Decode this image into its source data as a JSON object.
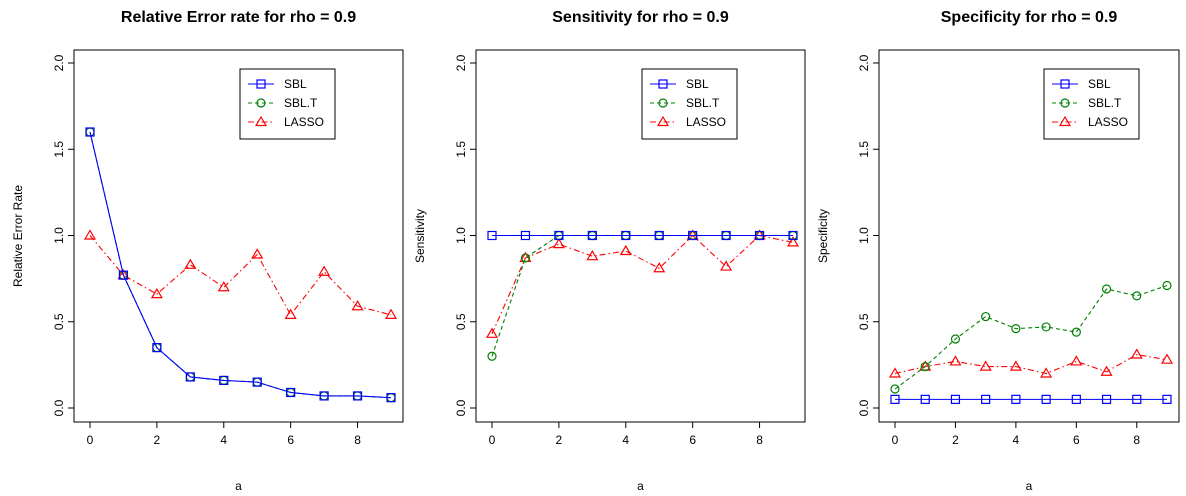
{
  "chart_data": [
    {
      "type": "line",
      "title": "Relative Error rate for rho = 0.9",
      "xlabel": "a",
      "ylabel": "Relative Error Rate",
      "xlim": [
        0,
        9
      ],
      "ylim": [
        0,
        2.0
      ],
      "xticks": [
        "0",
        "2",
        "4",
        "6",
        "8"
      ],
      "yticks": [
        "0.0",
        "0.5",
        "1.0",
        "1.5",
        "2.0"
      ],
      "legend_position": "top-right",
      "grid": false,
      "x": [
        0,
        1,
        2,
        3,
        4,
        5,
        6,
        7,
        8,
        9
      ],
      "series": [
        {
          "name": "SBL",
          "color": "#0000ff",
          "marker": "square",
          "line": "solid",
          "values": [
            1.6,
            0.77,
            0.35,
            0.18,
            0.16,
            0.15,
            0.09,
            0.07,
            0.07,
            0.06
          ]
        },
        {
          "name": "SBL.T",
          "color": "#008000",
          "marker": "circle",
          "line": "dashed",
          "values": [
            1.6,
            0.77,
            0.35,
            0.18,
            0.16,
            0.15,
            0.09,
            0.07,
            0.07,
            0.06
          ]
        },
        {
          "name": "LASSO",
          "color": "#ff0000",
          "marker": "triangle",
          "line": "dashdot",
          "values": [
            1.0,
            0.77,
            0.66,
            0.83,
            0.7,
            0.89,
            0.54,
            0.79,
            0.59,
            0.54
          ]
        }
      ]
    },
    {
      "type": "line",
      "title": "Sensitivity for rho = 0.9",
      "xlabel": "a",
      "ylabel": "Sensitivity",
      "xlim": [
        0,
        9
      ],
      "ylim": [
        0,
        2.0
      ],
      "xticks": [
        "0",
        "2",
        "4",
        "6",
        "8"
      ],
      "yticks": [
        "0.0",
        "0.5",
        "1.0",
        "1.5",
        "2.0"
      ],
      "legend_position": "top-right",
      "grid": false,
      "x": [
        0,
        1,
        2,
        3,
        4,
        5,
        6,
        7,
        8,
        9
      ],
      "series": [
        {
          "name": "SBL",
          "color": "#0000ff",
          "marker": "square",
          "line": "solid",
          "values": [
            1.0,
            1.0,
            1.0,
            1.0,
            1.0,
            1.0,
            1.0,
            1.0,
            1.0,
            1.0
          ]
        },
        {
          "name": "SBL.T",
          "color": "#008000",
          "marker": "circle",
          "line": "dashed",
          "values": [
            0.3,
            0.87,
            1.0,
            1.0,
            1.0,
            1.0,
            1.0,
            1.0,
            1.0,
            1.0
          ]
        },
        {
          "name": "LASSO",
          "color": "#ff0000",
          "marker": "triangle",
          "line": "dashdot",
          "values": [
            0.43,
            0.87,
            0.95,
            0.88,
            0.91,
            0.81,
            1.0,
            0.82,
            1.0,
            0.96
          ]
        }
      ]
    },
    {
      "type": "line",
      "title": "Specificity for rho = 0.9",
      "xlabel": "a",
      "ylabel": "Specificity",
      "xlim": [
        0,
        9
      ],
      "ylim": [
        0,
        2.0
      ],
      "xticks": [
        "0",
        "2",
        "4",
        "6",
        "8"
      ],
      "yticks": [
        "0.0",
        "0.5",
        "1.0",
        "1.5",
        "2.0"
      ],
      "legend_position": "top-right",
      "grid": false,
      "x": [
        0,
        1,
        2,
        3,
        4,
        5,
        6,
        7,
        8,
        9
      ],
      "series": [
        {
          "name": "SBL",
          "color": "#0000ff",
          "marker": "square",
          "line": "solid",
          "values": [
            0.05,
            0.05,
            0.05,
            0.05,
            0.05,
            0.05,
            0.05,
            0.05,
            0.05,
            0.05
          ]
        },
        {
          "name": "SBL.T",
          "color": "#008000",
          "marker": "circle",
          "line": "dashed",
          "values": [
            0.11,
            0.24,
            0.4,
            0.53,
            0.46,
            0.47,
            0.44,
            0.69,
            0.65,
            0.71
          ]
        },
        {
          "name": "LASSO",
          "color": "#ff0000",
          "marker": "triangle",
          "line": "dashdot",
          "values": [
            0.2,
            0.24,
            0.27,
            0.24,
            0.24,
            0.2,
            0.27,
            0.21,
            0.31,
            0.28
          ]
        }
      ]
    }
  ]
}
